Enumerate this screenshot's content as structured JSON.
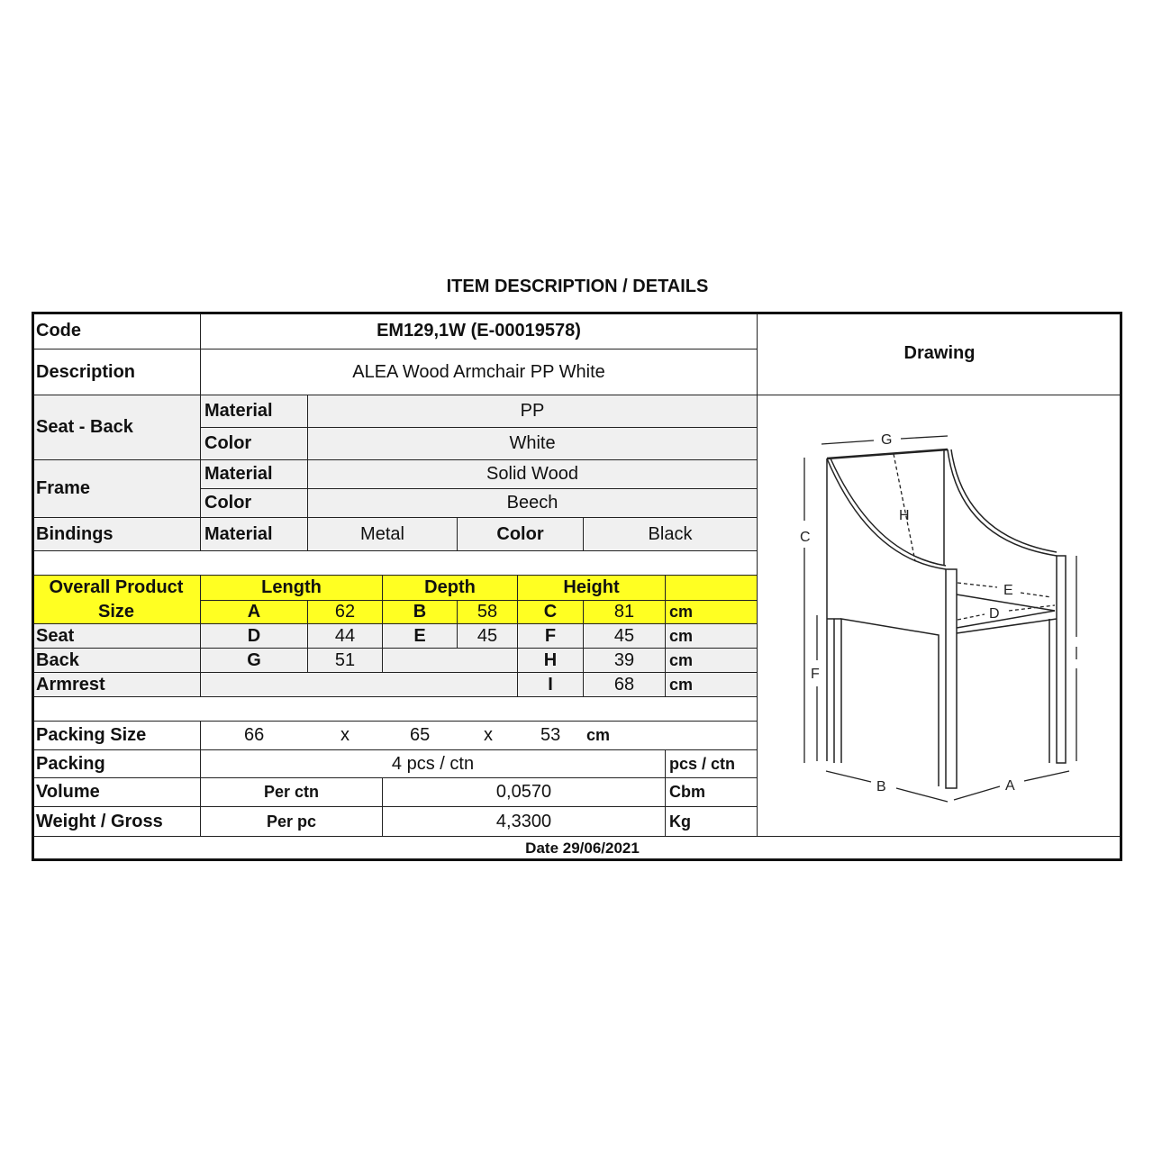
{
  "title": "ITEM DESCRIPTION / DETAILS",
  "code": {
    "label": "Code",
    "value": "EM129,1W (E-00019578)"
  },
  "description": {
    "label": "Description",
    "value": "ALEA Wood Armchair PP White"
  },
  "drawing_label": "Drawing",
  "seat_back": {
    "label": "Seat - Back",
    "material_label": "Material",
    "material": "PP",
    "color_label": "Color",
    "color": "White"
  },
  "frame": {
    "label": "Frame",
    "material_label": "Material",
    "material": "Solid Wood",
    "color_label": "Color",
    "color": "Beech"
  },
  "bindings": {
    "label": "Bindings",
    "material_label": "Material",
    "material": "Metal",
    "color_label": "Color",
    "color": "Black"
  },
  "overall": {
    "label_line1": "Overall Product",
    "label_line2": "Size",
    "length_label": "Length",
    "depth_label": "Depth",
    "height_label": "Height",
    "a": "A",
    "a_val": "62",
    "b": "B",
    "b_val": "58",
    "c": "C",
    "c_val": "81",
    "unit": "cm"
  },
  "seat": {
    "label": "Seat",
    "d": "D",
    "d_val": "44",
    "e": "E",
    "e_val": "45",
    "f": "F",
    "f_val": "45",
    "unit": "cm"
  },
  "back": {
    "label": "Back",
    "g": "G",
    "g_val": "51",
    "h": "H",
    "h_val": "39",
    "unit": "cm"
  },
  "armrest": {
    "label": "Armrest",
    "i": "I",
    "i_val": "68",
    "unit": "cm"
  },
  "packing_size": {
    "label": "Packing Size",
    "l": "66",
    "x1": "x",
    "w": "65",
    "x2": "x",
    "h": "53",
    "unit": "cm"
  },
  "packing": {
    "label": "Packing",
    "value": "4 pcs / ctn",
    "unit": "pcs / ctn"
  },
  "volume": {
    "label": "Volume",
    "per": "Per ctn",
    "value": "0,0570",
    "unit": "Cbm"
  },
  "weight": {
    "label": "Weight / Gross",
    "per": "Per pc",
    "value": "4,3300",
    "unit": "Kg"
  },
  "date": "Date 29/06/2021",
  "drawing_letters": {
    "g": "G",
    "h": "H",
    "c": "C",
    "f": "F",
    "e": "E",
    "d": "D",
    "b": "B",
    "a": "A"
  }
}
